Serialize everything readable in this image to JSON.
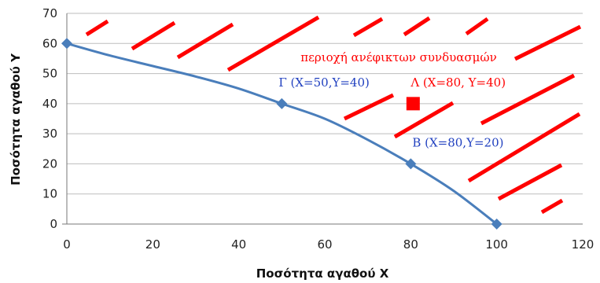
{
  "chart_data": {
    "type": "line",
    "xlabel": "Ποσότητα αγαθού X",
    "ylabel": "Ποσότητα αγαθού Y",
    "xlim": [
      0,
      120
    ],
    "ylim": [
      0,
      70
    ],
    "x_ticks": [
      0,
      20,
      40,
      60,
      80,
      100,
      120
    ],
    "y_ticks": [
      0,
      10,
      20,
      30,
      40,
      50,
      60,
      70
    ],
    "grid": "horizontal",
    "curve": {
      "x": [
        0,
        10,
        20,
        30,
        40,
        50,
        60,
        70,
        80,
        90,
        100
      ],
      "y": [
        60,
        56,
        52.5,
        49,
        45,
        40,
        35,
        28,
        20,
        11,
        0
      ],
      "color": "#4a7ebb"
    },
    "points": [
      {
        "x": 0,
        "y": 60,
        "marker": "diamond",
        "color": "#4a7ebb"
      },
      {
        "x": 50,
        "y": 40,
        "marker": "diamond",
        "color": "#4a7ebb",
        "label": "Γ (X=50,Y=40)",
        "label_color": "#1f3fbf"
      },
      {
        "x": 80,
        "y": 20,
        "marker": "diamond",
        "color": "#4a7ebb",
        "label": "Β (X=80,Y=20)",
        "label_color": "#1f3fbf"
      },
      {
        "x": 100,
        "y": 0,
        "marker": "diamond",
        "color": "#4a7ebb"
      },
      {
        "x": 80,
        "y": 40,
        "marker": "square",
        "color": "#ff0000",
        "label": "Λ (X=80, Y=40)",
        "label_color": "#ff0000"
      }
    ],
    "region_label": "περιοχή ανέφικτων συνδυασμών",
    "region_color": "#ff0000"
  }
}
